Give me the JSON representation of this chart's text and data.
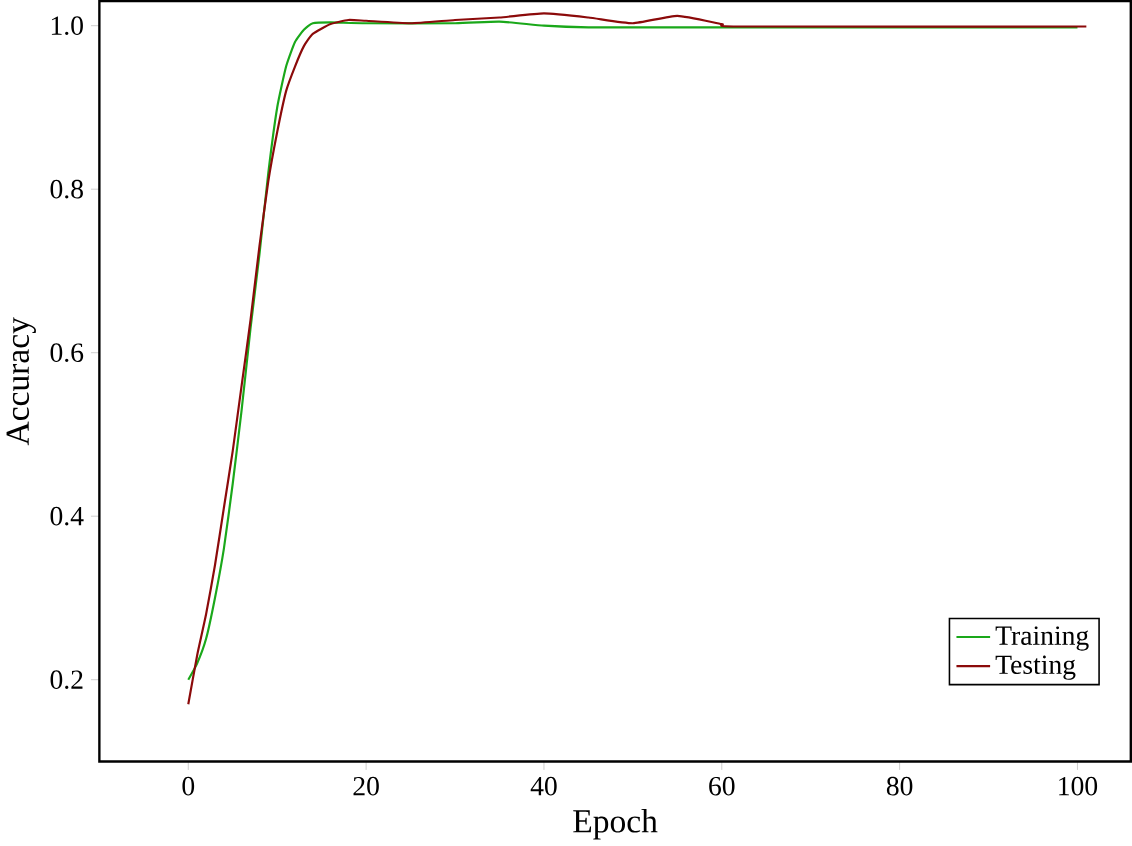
{
  "chart_data": {
    "type": "line",
    "xlabel": "Epoch",
    "ylabel": "Accuracy",
    "xlim": [
      -10,
      106
    ],
    "ylim": [
      0.1,
      1.03
    ],
    "xticks": [
      0,
      20,
      40,
      60,
      80,
      100
    ],
    "yticks": [
      0.2,
      0.4,
      0.6,
      0.8,
      {
        "value": 1.0,
        "label": "1.0"
      }
    ],
    "legend": "bottom right",
    "grid": false,
    "marker": "none",
    "line_style": "solid",
    "series": [
      {
        "name": "Training",
        "color": "#1aa81a",
        "x": [
          0,
          1,
          2,
          3,
          4,
          5,
          6,
          7,
          8,
          9,
          10,
          11,
          12,
          13,
          14,
          16,
          20,
          30,
          35,
          40,
          45,
          60,
          100
        ],
        "values": [
          0.2,
          0.22,
          0.25,
          0.3,
          0.36,
          0.44,
          0.53,
          0.63,
          0.72,
          0.82,
          0.9,
          0.95,
          0.98,
          0.995,
          1.003,
          1.004,
          1.003,
          1.003,
          1.005,
          1.0,
          0.998,
          0.998,
          0.998
        ]
      },
      {
        "name": "Testing",
        "color": "#8b0a0a",
        "x": [
          0,
          1,
          2,
          3,
          4,
          5,
          6,
          7,
          8,
          9,
          10,
          11,
          12,
          13,
          14,
          16,
          18,
          20,
          25,
          30,
          35,
          40,
          45,
          50,
          55,
          60,
          62,
          101
        ],
        "values": [
          0.17,
          0.23,
          0.28,
          0.34,
          0.41,
          0.48,
          0.56,
          0.64,
          0.73,
          0.81,
          0.87,
          0.92,
          0.95,
          0.975,
          0.99,
          1.002,
          1.007,
          1.006,
          1.003,
          1.007,
          1.01,
          1.015,
          1.01,
          1.003,
          1.012,
          1.002,
          0.999,
          0.999
        ]
      }
    ]
  }
}
